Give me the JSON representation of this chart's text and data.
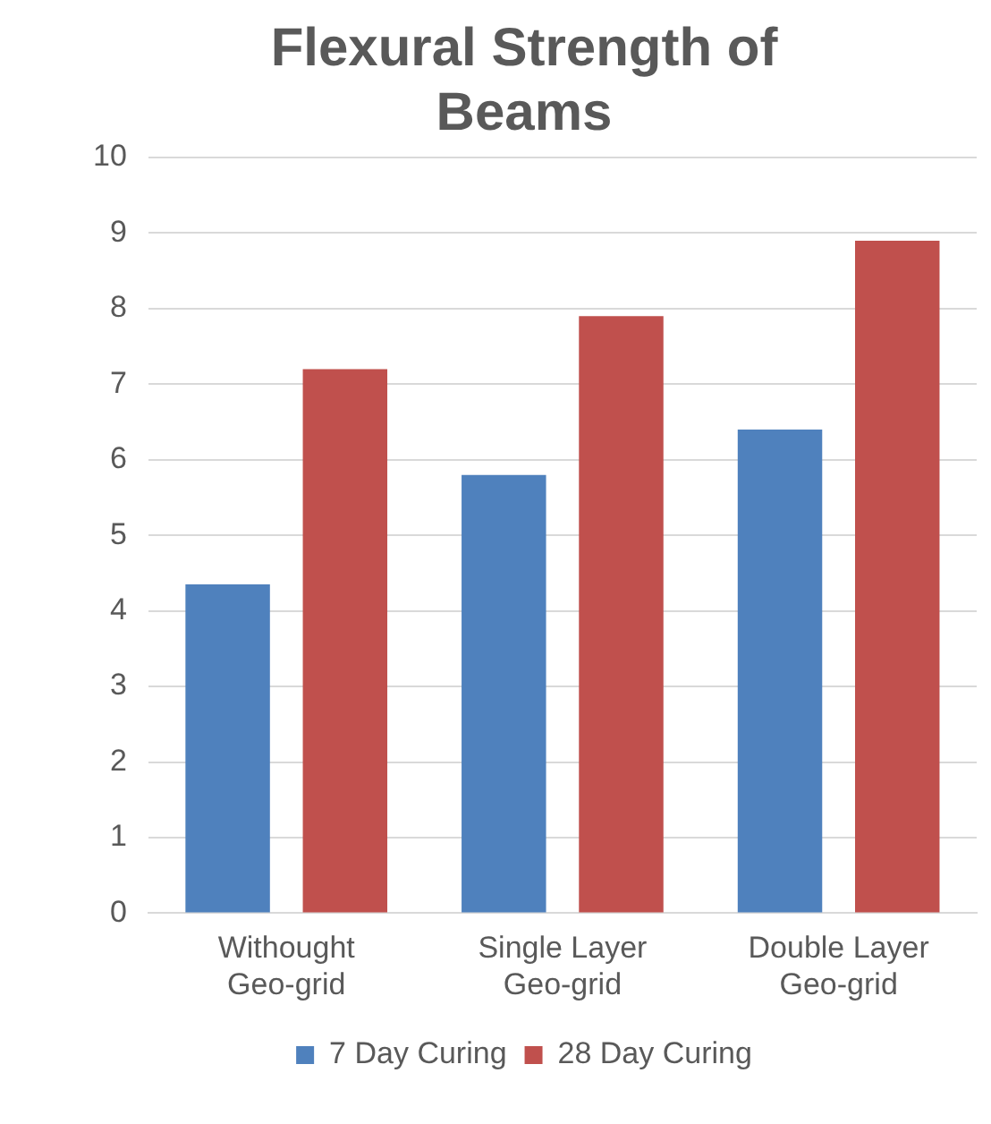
{
  "chart_data": {
    "type": "bar",
    "title": "Flexural Strength of Beams",
    "categories": [
      "Withought Geo-grid",
      "Single Layer Geo-grid",
      "Double Layer Geo-grid"
    ],
    "series": [
      {
        "name": "7 Day Curing",
        "color": "#4f81bd",
        "values": [
          4.35,
          5.8,
          6.4
        ]
      },
      {
        "name": "28 Day Curing",
        "color": "#c0504d",
        "values": [
          7.2,
          7.9,
          8.9
        ]
      }
    ],
    "ylim": [
      0,
      10
    ],
    "yticks": [
      0,
      1,
      2,
      3,
      4,
      5,
      6,
      7,
      8,
      9,
      10
    ],
    "grid": "y",
    "legend": "bottom"
  }
}
